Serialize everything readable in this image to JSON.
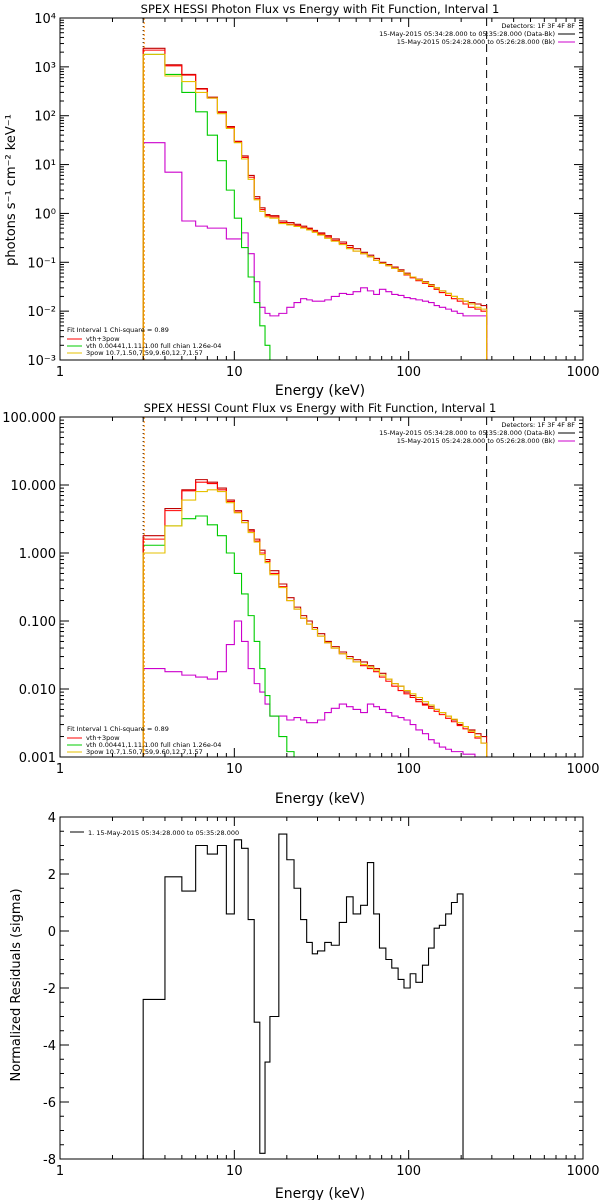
{
  "colors": {
    "black": "#000000",
    "data": "#c00000",
    "total": "#ff0000",
    "vth": "#00cc00",
    "bkg": "#cc00cc",
    "pow": "#e6c000",
    "limit": "#ff8800"
  },
  "chart_data": [
    {
      "type": "line",
      "title": "SPEX HESSI Photon Flux vs Energy with Fit Function, Interval 1",
      "xlabel": "Energy (keV)",
      "ylabel": "photons s⁻¹ cm⁻² keV⁻¹",
      "xscale": "log",
      "yscale": "log",
      "xlim": [
        1,
        1000
      ],
      "ylim": [
        0.001,
        10000
      ],
      "xticks": [
        1,
        10,
        100,
        1000
      ],
      "xtick_labels": [
        "1",
        "10",
        "100",
        "1000"
      ],
      "yticks": [
        0.001,
        0.01,
        0.1,
        1,
        10,
        100,
        1000,
        10000
      ],
      "ytick_labels": [
        "10⁻³",
        "10⁻²",
        "10⁻¹",
        "10⁰",
        "10¹",
        "10²",
        "10³",
        "10⁴"
      ],
      "header": {
        "detectors": "Detectors: 1F 3F 4F 8F",
        "time_lines": [
          "15-May-2015 05:34:28.000 to 05:35:28.000 (Data-Bk)",
          "15-May-2015 05:24:28.000 to 05:26:28.000 (Bk)"
        ]
      },
      "fit_text": {
        "title": "Fit Interval 1    Chi-square = 0.89",
        "lines": [
          "vth+3pow",
          "vth 0.00441,1.11,1.00  full chian 1.26e-04",
          "3pow 10.7,1.50,7.59,9.60,12.7,1.57"
        ]
      },
      "vlines": [
        3,
        280
      ],
      "x_edges": [
        3,
        4,
        5,
        6,
        7,
        8,
        9,
        10,
        11,
        12,
        13,
        14,
        15,
        16,
        18,
        20,
        22,
        24,
        26,
        28,
        30,
        33,
        36,
        40,
        44,
        48,
        53,
        58,
        63,
        68,
        74,
        80,
        87,
        94,
        102,
        110,
        120,
        130,
        140,
        150,
        163,
        176,
        190,
        205,
        220,
        240,
        260,
        280
      ],
      "series": [
        {
          "key": "data",
          "values": [
            2400,
            1100,
            700,
            360,
            240,
            120,
            60,
            30,
            15,
            6,
            2.2,
            1.3,
            0.95,
            0.9,
            0.7,
            0.65,
            0.6,
            0.55,
            0.5,
            0.45,
            0.4,
            0.35,
            0.3,
            0.26,
            0.22,
            0.19,
            0.16,
            0.14,
            0.12,
            0.1,
            0.09,
            0.08,
            0.07,
            0.06,
            0.05,
            0.045,
            0.04,
            0.035,
            0.03,
            0.026,
            0.023,
            0.02,
            0.018,
            0.016,
            0.015,
            0.014,
            0.013
          ]
        },
        {
          "key": "total",
          "values": [
            2200,
            1050,
            680,
            350,
            230,
            115,
            58,
            29,
            14,
            5.5,
            2.0,
            1.2,
            0.9,
            0.85,
            0.65,
            0.6,
            0.56,
            0.52,
            0.48,
            0.43,
            0.38,
            0.33,
            0.28,
            0.24,
            0.2,
            0.17,
            0.15,
            0.13,
            0.11,
            0.095,
            0.085,
            0.075,
            0.065,
            0.055,
            0.048,
            0.042,
            0.037,
            0.032,
            0.028,
            0.024,
            0.021,
            0.018,
            0.016,
            0.014,
            0.012,
            0.011,
            0.01
          ]
        },
        {
          "key": "vth",
          "values": [
            1800,
            700,
            300,
            120,
            40,
            12,
            3,
            0.8,
            0.2,
            0.05,
            0.015,
            0.005,
            0.002,
            0.0008
          ]
        },
        {
          "key": "pow",
          "values": [
            1800,
            650,
            500,
            300,
            230,
            110,
            55,
            28,
            13,
            5,
            1.9,
            1.1,
            0.85,
            0.8,
            0.62,
            0.58,
            0.54,
            0.5,
            0.46,
            0.41,
            0.36,
            0.31,
            0.27,
            0.23,
            0.19,
            0.17,
            0.15,
            0.13,
            0.11,
            0.095,
            0.085,
            0.075,
            0.066,
            0.057,
            0.05,
            0.044,
            0.039,
            0.034,
            0.03,
            0.026,
            0.023,
            0.02,
            0.018,
            0.016,
            0.014,
            0.012,
            0.011
          ]
        },
        {
          "key": "bkg",
          "values": [
            28,
            7,
            0.7,
            0.55,
            0.5,
            0.5,
            0.3,
            0.3,
            0.4,
            0.15,
            0.04,
            0.012,
            0.009,
            0.008,
            0.009,
            0.012,
            0.015,
            0.018,
            0.017,
            0.016,
            0.016,
            0.017,
            0.02,
            0.023,
            0.022,
            0.025,
            0.03,
            0.026,
            0.022,
            0.028,
            0.025,
            0.022,
            0.021,
            0.019,
            0.018,
            0.017,
            0.016,
            0.015,
            0.013,
            0.012,
            0.011,
            0.01,
            0.009,
            0.008,
            0.008,
            0.008,
            0.008
          ]
        }
      ]
    },
    {
      "type": "line",
      "title": "SPEX HESSI Count Flux vs Energy with Fit Function, Interval 1",
      "xlabel": "Energy (keV)",
      "ylabel": "",
      "xscale": "log",
      "yscale": "log",
      "xlim": [
        1,
        1000
      ],
      "ylim": [
        0.001,
        100
      ],
      "xticks": [
        1,
        10,
        100,
        1000
      ],
      "xtick_labels": [
        "1",
        "10",
        "100",
        "1000"
      ],
      "yticks": [
        0.001,
        0.01,
        0.1,
        1,
        10,
        100
      ],
      "ytick_labels": [
        "0.001",
        "0.010",
        "0.100",
        "1.000",
        "10.000",
        "100.000"
      ],
      "header": {
        "detectors": "Detectors: 1F 3F 4F 8F",
        "time_lines": [
          "15-May-2015 05:34:28.000 to 05:35:28.000 (Data-Bk)",
          "15-May-2015 05:24:28.000 to 05:26:28.000 (Bk)"
        ]
      },
      "fit_text": {
        "title": "Fit Interval 1    Chi-square = 0.89",
        "lines": [
          "vth+3pow",
          "vth 0.00441,1.11,1.00  full chian 1.26e-04",
          "3pow 10.7,1.50,7.59,9.60,12.7,1.57"
        ]
      },
      "vlines": [
        3,
        280
      ],
      "x_edges": [
        3,
        4,
        5,
        6,
        7,
        8,
        9,
        10,
        11,
        12,
        13,
        14,
        15,
        16,
        18,
        20,
        22,
        24,
        26,
        28,
        30,
        33,
        36,
        40,
        44,
        48,
        53,
        58,
        63,
        68,
        74,
        80,
        87,
        94,
        102,
        110,
        120,
        130,
        140,
        150,
        163,
        176,
        190,
        205,
        220,
        240,
        260,
        280
      ],
      "series": [
        {
          "key": "data",
          "values": [
            1.8,
            4.5,
            8.5,
            12,
            11,
            9,
            6,
            4.2,
            3.0,
            2.2,
            1.6,
            1.1,
            0.8,
            0.55,
            0.35,
            0.22,
            0.16,
            0.12,
            0.1,
            0.08,
            0.065,
            0.05,
            0.042,
            0.035,
            0.03,
            0.027,
            0.025,
            0.022,
            0.02,
            0.017,
            0.014,
            0.012,
            0.011,
            0.009,
            0.008,
            0.007,
            0.006,
            0.0055,
            0.005,
            0.0045,
            0.004,
            0.0035,
            0.003,
            0.0028,
            0.0025,
            0.0022,
            0.002
          ]
        },
        {
          "key": "total",
          "values": [
            1.6,
            4.2,
            8.2,
            11,
            10.5,
            8.5,
            5.7,
            4.0,
            2.8,
            2.1,
            1.5,
            1.0,
            0.75,
            0.5,
            0.32,
            0.2,
            0.15,
            0.11,
            0.09,
            0.075,
            0.06,
            0.048,
            0.04,
            0.033,
            0.028,
            0.025,
            0.022,
            0.02,
            0.018,
            0.015,
            0.013,
            0.011,
            0.0095,
            0.0085,
            0.0075,
            0.0065,
            0.0058,
            0.0052,
            0.0047,
            0.0042,
            0.0037,
            0.0033,
            0.0029,
            0.0026,
            0.0023,
            0.0019,
            0.0016
          ]
        },
        {
          "key": "vth",
          "values": [
            1.3,
            2.5,
            3.2,
            3.5,
            2.6,
            1.8,
            1.0,
            0.5,
            0.25,
            0.12,
            0.05,
            0.02,
            0.008,
            0.004,
            0.002,
            0.0012
          ]
        },
        {
          "key": "pow",
          "values": [
            1.0,
            2.5,
            6.0,
            8.0,
            8.5,
            8.0,
            5.5,
            3.9,
            2.8,
            2.0,
            1.45,
            0.95,
            0.72,
            0.48,
            0.31,
            0.2,
            0.15,
            0.11,
            0.09,
            0.075,
            0.06,
            0.048,
            0.04,
            0.033,
            0.028,
            0.025,
            0.023,
            0.021,
            0.019,
            0.016,
            0.014,
            0.012,
            0.011,
            0.0095,
            0.0085,
            0.0075,
            0.0065,
            0.0058,
            0.005,
            0.0045,
            0.004,
            0.0036,
            0.0032,
            0.0028,
            0.0024,
            0.002,
            0.0016
          ]
        },
        {
          "key": "bkg",
          "values": [
            0.02,
            0.018,
            0.016,
            0.015,
            0.014,
            0.018,
            0.045,
            0.1,
            0.05,
            0.02,
            0.012,
            0.009,
            0.006,
            0.004,
            0.004,
            0.0035,
            0.0038,
            0.0035,
            0.0032,
            0.0032,
            0.0035,
            0.0045,
            0.0052,
            0.006,
            0.0055,
            0.005,
            0.0045,
            0.006,
            0.0055,
            0.005,
            0.0045,
            0.004,
            0.0038,
            0.0035,
            0.003,
            0.0025,
            0.0022,
            0.0018,
            0.0016,
            0.0014,
            0.0013,
            0.0012,
            0.0012,
            0.0011,
            0.0011,
            0.001,
            0.001
          ]
        }
      ]
    },
    {
      "type": "line",
      "title": "",
      "xlabel": "Energy (keV)",
      "ylabel": "Normalized Residuals (sigma)",
      "xscale": "log",
      "yscale": "linear",
      "xlim": [
        1,
        1000
      ],
      "ylim": [
        -8,
        4
      ],
      "xticks": [
        1,
        10,
        100,
        1000
      ],
      "xtick_labels": [
        "1",
        "10",
        "100",
        "1000"
      ],
      "yticks": [
        -8,
        -6,
        -4,
        -2,
        0,
        2,
        4
      ],
      "ytick_labels": [
        "-8",
        "-6",
        "-4",
        "-2",
        "0",
        "2",
        "4"
      ],
      "legend": "1. 15-May-2015 05:34:28.000 to 05:35:28.000",
      "x_edges": [
        3,
        4,
        5,
        6,
        7,
        8,
        9,
        10,
        11,
        12,
        13,
        14,
        15,
        16,
        18,
        20,
        22,
        24,
        26,
        28,
        30,
        33,
        36,
        40,
        44,
        48,
        53,
        58,
        63,
        68,
        74,
        80,
        87,
        94,
        102,
        110,
        120,
        130,
        140,
        150,
        163,
        176,
        190,
        205,
        220,
        240,
        260,
        280
      ],
      "series": [
        {
          "key": "black",
          "values": [
            -2.4,
            1.9,
            1.4,
            3.0,
            2.7,
            3.0,
            0.6,
            3.2,
            2.9,
            0.4,
            -3.2,
            -7.8,
            -4.6,
            -3.0,
            3.4,
            2.5,
            1.5,
            0.4,
            -0.4,
            -0.8,
            -0.7,
            -0.4,
            -0.5,
            0.3,
            1.2,
            0.6,
            0.9,
            2.4,
            0.6,
            -0.6,
            -1.0,
            -1.3,
            -1.7,
            -2.0,
            -1.5,
            -1.8,
            -1.2,
            -0.6,
            0.1,
            0.2,
            0.6,
            1.0,
            1.3
          ]
        }
      ]
    }
  ]
}
